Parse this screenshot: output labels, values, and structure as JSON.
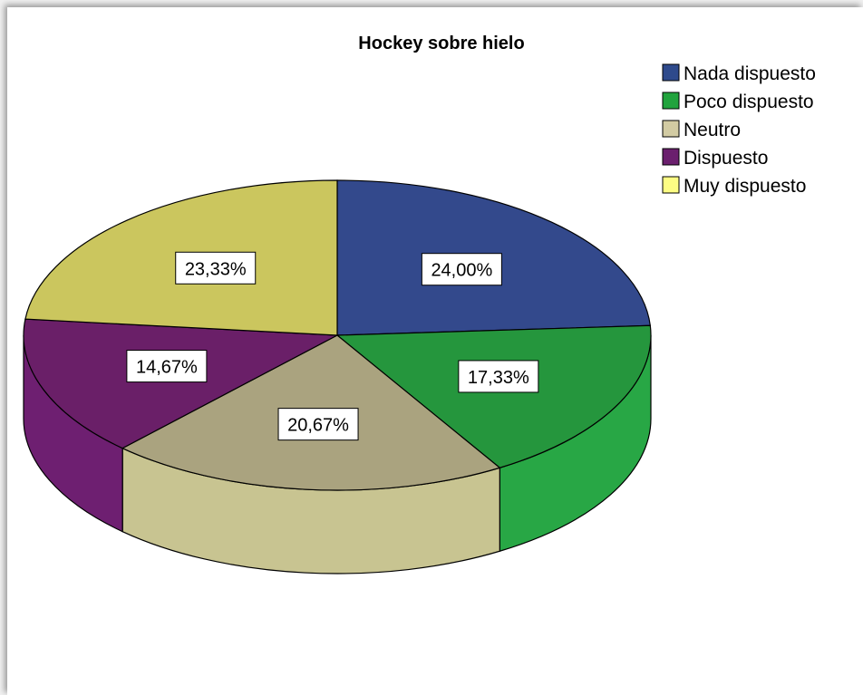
{
  "chart_data": {
    "type": "pie",
    "title": "Hockey sobre hielo",
    "legend_position": "top-right",
    "categories": [
      "Nada dispuesto",
      "Poco dispuesto",
      "Neutro",
      "Dispuesto",
      "Muy dispuesto"
    ],
    "values": [
      24.0,
      17.33,
      20.67,
      14.67,
      23.33
    ],
    "data_labels": [
      "24,00%",
      "17,33%",
      "20,67%",
      "14,67%",
      "23,33%"
    ],
    "legend_colors": [
      "#2e4a8c",
      "#21a33d",
      "#d2cba3",
      "#6b1f6e",
      "#fdfd84"
    ],
    "top_colors": [
      "#33498c",
      "#25963d",
      "#aaa37f",
      "#6a1f68",
      "#cbc65e"
    ],
    "side_colors": [
      "#2a3d75",
      "#28a745",
      "#c8c491",
      "#6e1f71",
      "#c1bc59"
    ]
  }
}
